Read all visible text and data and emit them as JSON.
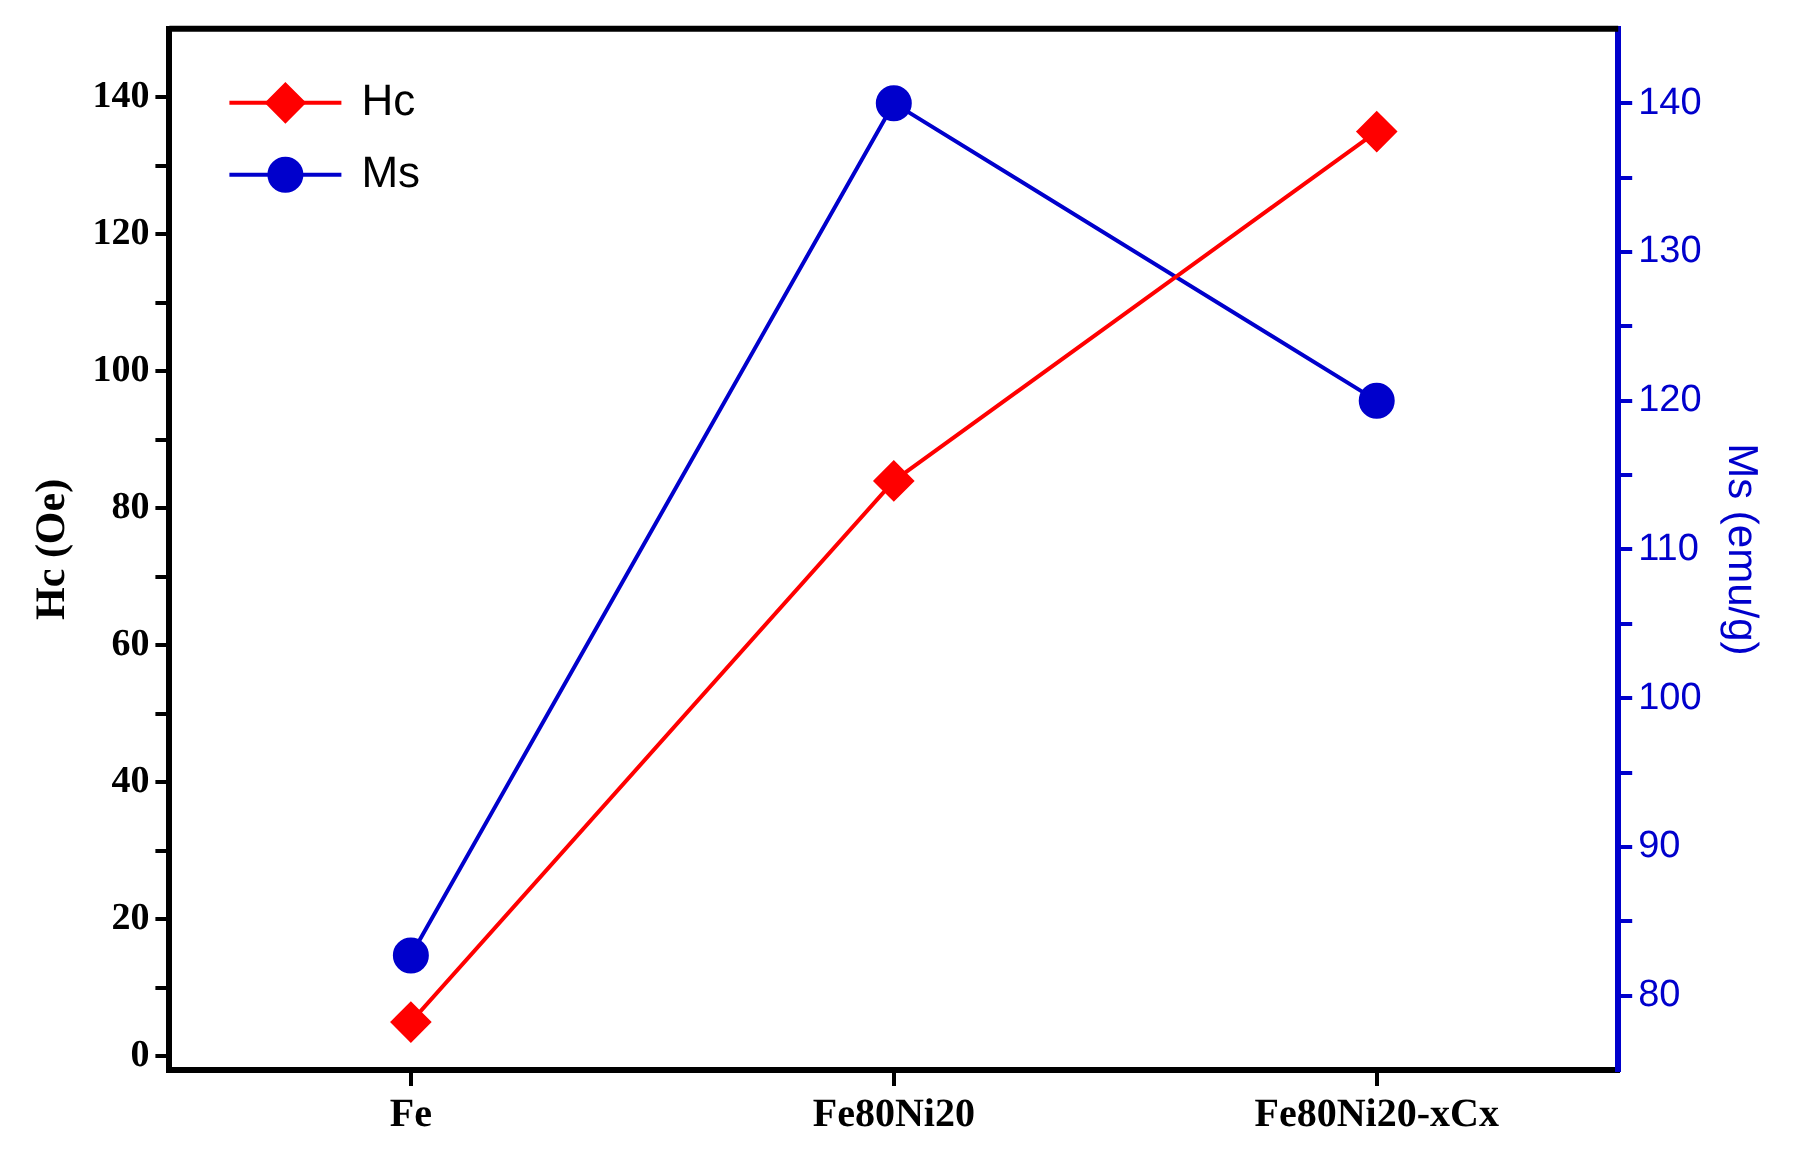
{
  "chart_data": {
    "type": "line",
    "categories": [
      "Fe",
      "Fe80Ni20",
      "Fe80Ni20-xCx"
    ],
    "ylabel": "Hc (Oe)",
    "y2label": "Ms (emu/g)",
    "ylim": [
      -2,
      150
    ],
    "yticks": [
      0,
      {
        "value": 10,
        "label": null
      },
      20,
      {
        "value": 30,
        "label": null
      },
      40,
      {
        "value": 50,
        "label": null
      },
      60,
      {
        "value": 70,
        "label": null
      },
      80,
      {
        "value": 90,
        "label": null
      },
      100,
      {
        "value": 110,
        "label": null
      },
      120,
      {
        "value": 130,
        "label": null
      },
      140
    ],
    "y2lim": [
      75,
      145
    ],
    "y2ticks": [
      80,
      {
        "value": 85,
        "label": null
      },
      90,
      {
        "value": 95,
        "label": null
      },
      100,
      {
        "value": 105,
        "label": null
      },
      110,
      {
        "value": 115,
        "label": null
      },
      120,
      {
        "value": 125,
        "label": null
      },
      130,
      {
        "value": 135,
        "label": null
      },
      140
    ],
    "grid": false,
    "legend": "top left",
    "line_style": "solid",
    "series": [
      {
        "name": "Hc",
        "color": "#ff0000",
        "values": [
          5,
          84,
          135
        ],
        "marker": "diamond"
      },
      {
        "name": "Ms",
        "color": "#0000cc",
        "values": [
          82.7,
          140,
          120
        ],
        "marker": "circle",
        "axis": "y2"
      }
    ]
  }
}
